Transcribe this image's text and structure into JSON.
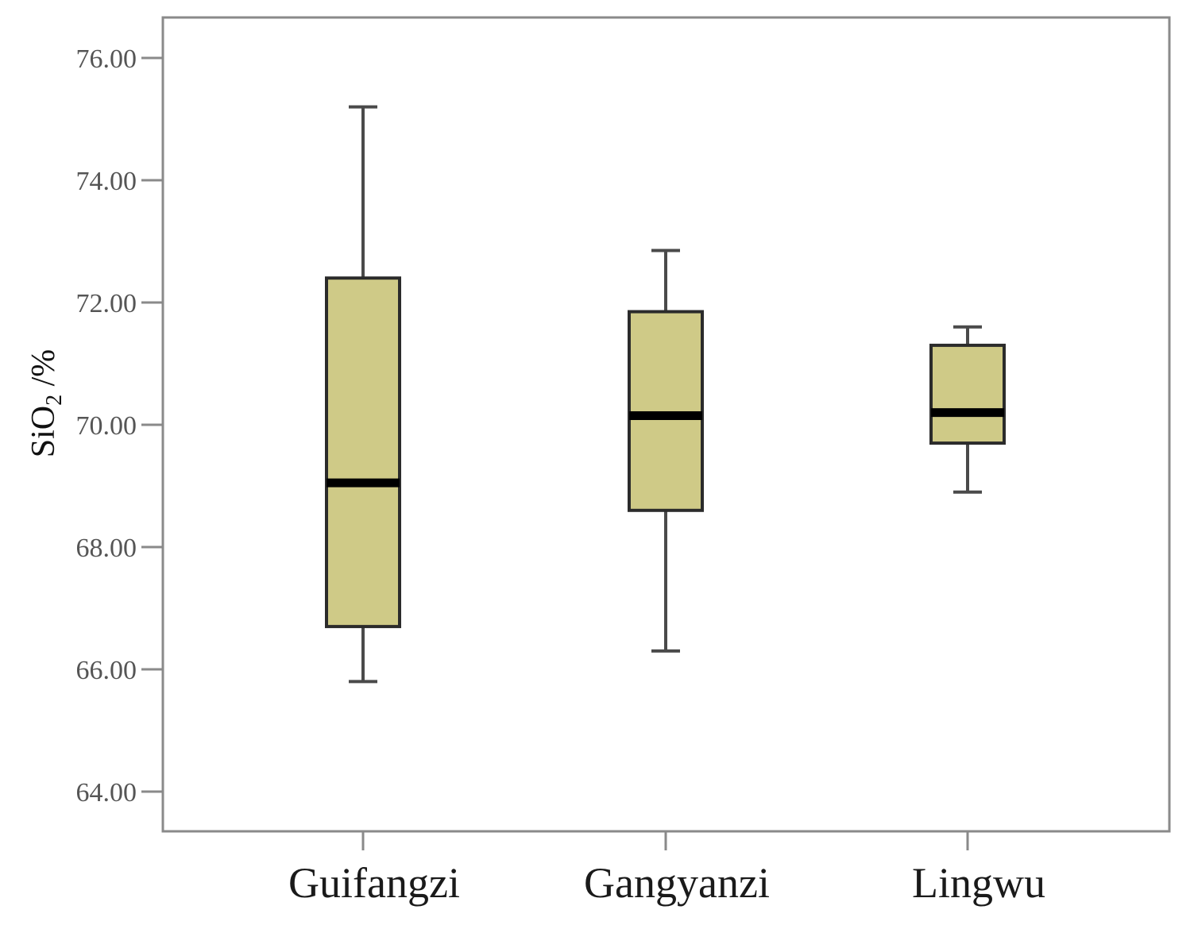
{
  "chart_data": {
    "type": "boxplot",
    "title": "",
    "xlabel": "",
    "ylabel": {
      "base": "SiO",
      "subscript": "2",
      "suffix": " /%"
    },
    "ylim": [
      63.3,
      76.6
    ],
    "yticks": [
      "76.00",
      "74.00",
      "72.00",
      "70.00",
      "68.00",
      "66.00",
      "64.00"
    ],
    "ytick_values": [
      76,
      74,
      72,
      70,
      68,
      66,
      64
    ],
    "categories": [
      "Guifangzi",
      "Gangyanzi",
      "Lingwu"
    ],
    "boxes": [
      {
        "category": "Guifangzi",
        "min": 65.8,
        "q1": 66.7,
        "median": 69.05,
        "q3": 72.4,
        "max": 75.2
      },
      {
        "category": "Gangyanzi",
        "min": 66.3,
        "q1": 68.6,
        "median": 70.15,
        "q3": 71.85,
        "max": 72.85
      },
      {
        "category": "Lingwu",
        "min": 68.9,
        "q1": 69.7,
        "median": 70.2,
        "q3": 71.3,
        "max": 71.6
      }
    ],
    "grid": false,
    "legend": "none",
    "colors": {
      "box_fill": "#cfca87",
      "box_stroke": "#2b2b2b",
      "whisker": "#4a4a4a",
      "median": "#000000",
      "frame": "#8a8a8a"
    }
  }
}
